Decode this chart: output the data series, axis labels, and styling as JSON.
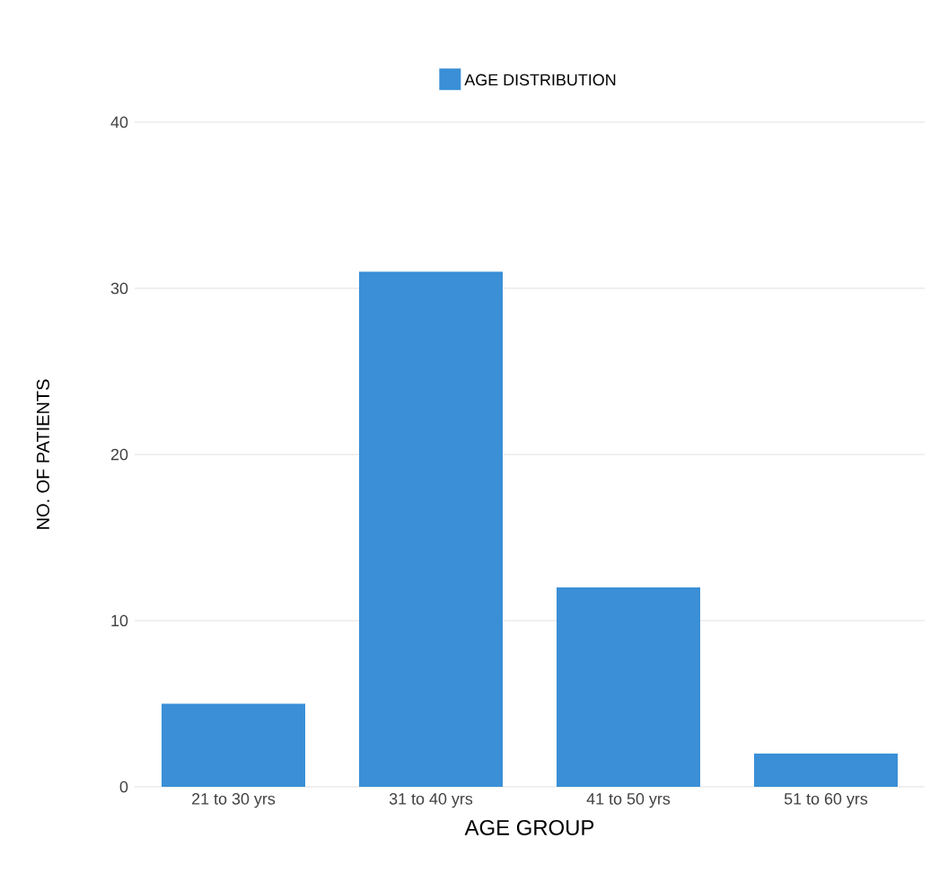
{
  "chart_data": {
    "type": "bar",
    "xlabel": "AGE GROUP",
    "ylabel": "NO. OF PATIENTS",
    "categories": [
      "21 to 30 yrs",
      "31 to 40 yrs",
      "41 to 50 yrs",
      "51 to 60 yrs"
    ],
    "series": [
      {
        "name": "AGE DISTRIBUTION",
        "color": "#3a8fd6",
        "values": [
          5,
          31,
          12,
          2
        ]
      }
    ],
    "ylim": [
      0,
      40
    ],
    "yticks": [
      0,
      10,
      20,
      30,
      40
    ],
    "grid": "y",
    "legend": "top"
  }
}
